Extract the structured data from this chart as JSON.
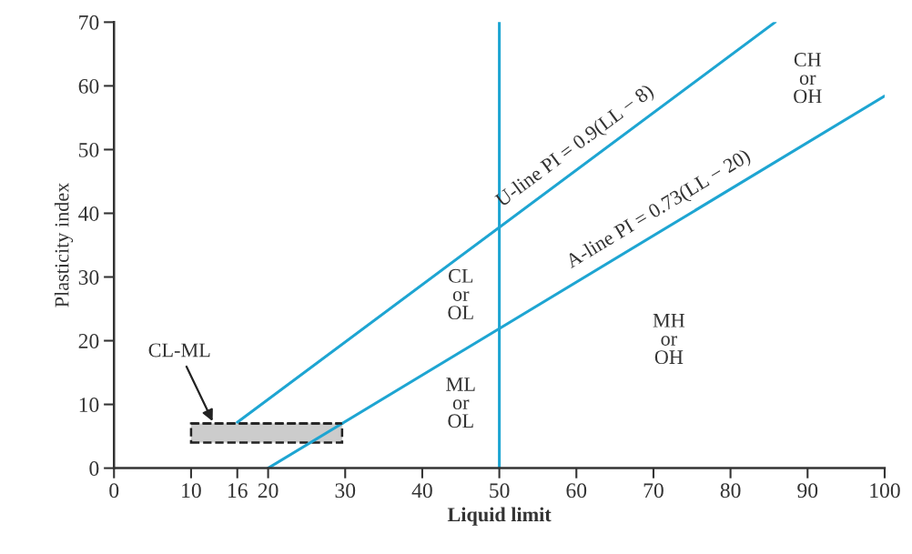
{
  "chart_data": {
    "type": "line",
    "xlabel": "Liquid limit",
    "ylabel": "Plasticity index",
    "xlim": [
      0,
      100
    ],
    "ylim": [
      0,
      70
    ],
    "xticks": [
      0,
      10,
      16,
      20,
      30,
      40,
      50,
      60,
      70,
      80,
      90,
      100
    ],
    "yticks": [
      0,
      10,
      20,
      30,
      40,
      50,
      60,
      70
    ],
    "grid": false,
    "legend": false,
    "series": [
      {
        "name": "U-line PI = 0.9(LL − 8)",
        "color": "#1ea5d2",
        "x": [
          16,
          85.8
        ],
        "values": [
          7.2,
          70
        ]
      },
      {
        "name": "A-line PI = 0.73(LL − 20)",
        "color": "#1ea5d2",
        "x": [
          20,
          100
        ],
        "values": [
          0,
          58.4
        ]
      },
      {
        "color": "#222222",
        "line_style": "dashed",
        "x": [
          10,
          29.6
        ],
        "values": [
          7,
          7
        ],
        "lower": [
          4,
          4
        ],
        "upper": [
          7,
          7
        ]
      }
    ],
    "ref_lines": [
      {
        "axis": "x",
        "value": 50,
        "color": "#1ea5d2"
      }
    ],
    "annotations": [
      "CL-ML",
      "CL\nor\nOL",
      "ML\nor\nOL",
      "MH\nor\nOH",
      "CH\nor\nOH"
    ]
  }
}
